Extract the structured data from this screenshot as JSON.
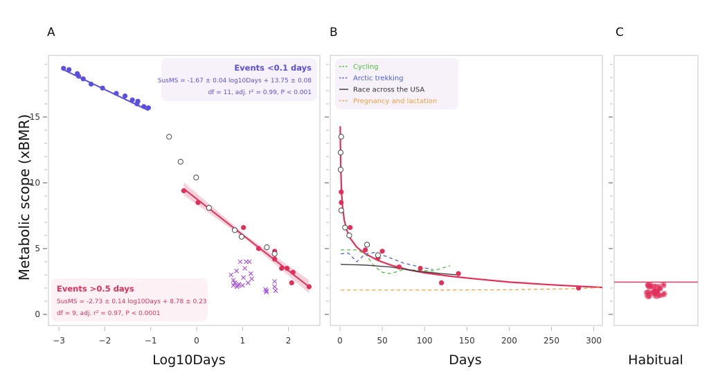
{
  "figure": {
    "ylabel": "Metabolic scope (xBMR)",
    "yticks": [
      0,
      5,
      10,
      15
    ],
    "ylim": [
      -0.8,
      19.5
    ]
  },
  "chart_data": [
    {
      "panel": "A",
      "type": "scatter",
      "xlabel": "Log10Days",
      "ylabel": "Metabolic scope (xBMR)",
      "xlim": [
        -3.2,
        2.7
      ],
      "ylim": [
        -0.8,
        19.5
      ],
      "xticks": [
        -3,
        -2,
        -1,
        0,
        1,
        2
      ],
      "yticks": [
        0,
        5,
        10,
        15
      ],
      "grid": false,
      "series": [
        {
          "name": "Events <0.1 days",
          "color": "#5b4fe0",
          "marker": "filled-circle",
          "points": [
            [
              -2.9,
              18.7
            ],
            [
              -2.78,
              18.6
            ],
            [
              -2.6,
              18.3
            ],
            [
              -2.57,
              18.1
            ],
            [
              -2.47,
              17.9
            ],
            [
              -2.3,
              17.5
            ],
            [
              -2.05,
              17.2
            ],
            [
              -1.75,
              16.8
            ],
            [
              -1.56,
              16.6
            ],
            [
              -1.4,
              16.3
            ],
            [
              -1.3,
              16.0
            ],
            [
              -1.28,
              16.2
            ],
            [
              -1.15,
              15.8
            ],
            [
              -1.05,
              15.7
            ]
          ],
          "fit": {
            "slope": -1.67,
            "intercept": 13.75,
            "x_range": [
              -2.9,
              -1.05
            ]
          }
        },
        {
          "name": "Events >0.5 days",
          "color": "#e0305a",
          "marker": "filled-circle",
          "points": [
            [
              -0.28,
              9.4
            ],
            [
              0.03,
              8.5
            ],
            [
              1.02,
              6.6
            ],
            [
              1.35,
              5.0
            ],
            [
              1.7,
              4.8
            ],
            [
              1.7,
              4.2
            ],
            [
              1.85,
              3.5
            ],
            [
              1.97,
              3.5
            ],
            [
              2.1,
              3.2
            ],
            [
              2.07,
              2.4
            ],
            [
              2.45,
              2.1
            ]
          ],
          "fit": {
            "slope": -2.73,
            "intercept": 8.78,
            "x_range": [
              -0.28,
              2.45
            ],
            "ci": true
          }
        },
        {
          "name": "Open circles",
          "color": "#444444",
          "marker": "open-circle",
          "points": [
            [
              -0.6,
              13.5
            ],
            [
              -0.35,
              11.6
            ],
            [
              -0.01,
              10.4
            ],
            [
              0.27,
              8.1
            ],
            [
              0.83,
              6.4
            ],
            [
              0.98,
              5.9
            ],
            [
              1.53,
              5.1
            ],
            [
              1.7,
              4.6
            ]
          ]
        },
        {
          "name": "Crosses",
          "color": "#a855e0",
          "marker": "cross",
          "points": [
            [
              0.75,
              3.0
            ],
            [
              0.8,
              2.6
            ],
            [
              0.8,
              2.2
            ],
            [
              0.83,
              2.4
            ],
            [
              0.87,
              3.3
            ],
            [
              0.88,
              2.1
            ],
            [
              0.9,
              2.2
            ],
            [
              0.92,
              2.3
            ],
            [
              0.95,
              4.0
            ],
            [
              1.0,
              2.2
            ],
            [
              1.02,
              2.8
            ],
            [
              1.05,
              3.5
            ],
            [
              1.08,
              4.0
            ],
            [
              1.12,
              2.4
            ],
            [
              1.15,
              4.0
            ],
            [
              1.18,
              3.1
            ],
            [
              1.2,
              2.7
            ],
            [
              1.5,
              1.9
            ],
            [
              1.52,
              1.7
            ],
            [
              1.52,
              1.8
            ],
            [
              1.7,
              2.5
            ],
            [
              1.7,
              2.1
            ],
            [
              1.72,
              1.8
            ]
          ]
        }
      ],
      "annotations": [
        {
          "title": "Events <0.1 days",
          "lines": [
            "SusMS = -1.67 ± 0.04 log10Days + 13.75 ± 0.08",
            "df = 11, adj. r² = 0.99, P < 0.001"
          ],
          "color": "#5b4fe0",
          "placement": "top-right"
        },
        {
          "title": "Events >0.5 days",
          "lines": [
            "SusMS = -2.73 ± 0.14 log10Days + 8.78 ± 0.23",
            "df = 9, adj. r² = 0.97, P < 0.0001"
          ],
          "color": "#e0305a",
          "placement": "bottom-left"
        }
      ]
    },
    {
      "panel": "B",
      "type": "line",
      "xlabel": "Days",
      "xlim": [
        -8,
        310
      ],
      "ylim": [
        -0.8,
        19.5
      ],
      "xticks": [
        0,
        50,
        100,
        150,
        200,
        250,
        300
      ],
      "yticks": [
        0,
        5,
        10,
        15
      ],
      "legend": {
        "placement": "top-left",
        "entries": [
          {
            "label": "Cycling",
            "color": "#4cbf3a",
            "style": "dashed"
          },
          {
            "label": "Arctic trekking",
            "color": "#4a63d9",
            "style": "dashed"
          },
          {
            "label": "Race across the USA",
            "color": "#333333",
            "style": "solid"
          },
          {
            "label": "Pregnancy and lactation",
            "color": "#f0a040",
            "style": "dashed"
          }
        ]
      },
      "series": [
        {
          "name": "Fit curve",
          "color": "#e0305a",
          "style": "solid",
          "points": [
            [
              0.3,
              14.3
            ],
            [
              0.6,
              12.5
            ],
            [
              1,
              11.2
            ],
            [
              1.5,
              10.0
            ],
            [
              2,
              9.2
            ],
            [
              3,
              8.2
            ],
            [
              5,
              7.2
            ],
            [
              8,
              6.4
            ],
            [
              12,
              5.8
            ],
            [
              20,
              5.1
            ],
            [
              30,
              4.6
            ],
            [
              45,
              4.1
            ],
            [
              60,
              3.75
            ],
            [
              80,
              3.4
            ],
            [
              100,
              3.15
            ],
            [
              130,
              2.9
            ],
            [
              160,
              2.7
            ],
            [
              200,
              2.45
            ],
            [
              250,
              2.25
            ],
            [
              310,
              2.05
            ]
          ]
        },
        {
          "name": "Cycling",
          "color": "#4cbf3a",
          "style": "dashed",
          "points": [
            [
              1,
              4.9
            ],
            [
              20,
              4.9
            ],
            [
              30,
              4.6
            ],
            [
              40,
              3.7
            ],
            [
              50,
              3.2
            ],
            [
              60,
              3.1
            ],
            [
              75,
              3.4
            ],
            [
              95,
              3.35
            ],
            [
              110,
              3.3
            ],
            [
              120,
              3.5
            ],
            [
              130,
              3.7
            ]
          ]
        },
        {
          "name": "Arctic trekking",
          "color": "#4a63d9",
          "style": "dashed",
          "points": [
            [
              1,
              4.6
            ],
            [
              10,
              4.65
            ],
            [
              20,
              4.0
            ],
            [
              30,
              4.6
            ],
            [
              40,
              4.7
            ],
            [
              55,
              4.4
            ],
            [
              75,
              3.9
            ],
            [
              95,
              3.6
            ],
            [
              110,
              3.4
            ]
          ]
        },
        {
          "name": "Race across the USA",
          "color": "#333333",
          "style": "solid",
          "points": [
            [
              1,
              3.8
            ],
            [
              30,
              3.75
            ],
            [
              60,
              3.6
            ],
            [
              90,
              3.3
            ],
            [
              120,
              3.1
            ],
            [
              140,
              3.0
            ]
          ]
        },
        {
          "name": "Pregnancy and lactation",
          "color": "#f0a040",
          "style": "dashed",
          "points": [
            [
              1,
              1.85
            ],
            [
              100,
              1.85
            ],
            [
              200,
              1.87
            ],
            [
              280,
              1.95
            ],
            [
              310,
              2.05
            ]
          ]
        },
        {
          "name": "Filled points",
          "color": "#e0305a",
          "marker": "filled-circle",
          "points": [
            [
              1.5,
              9.3
            ],
            [
              1.5,
              8.5
            ],
            [
              12,
              6.6
            ],
            [
              30,
              4.9
            ],
            [
              50,
              4.8
            ],
            [
              45,
              4.3
            ],
            [
              70,
              3.6
            ],
            [
              95,
              3.5
            ],
            [
              120,
              2.4
            ],
            [
              140,
              3.1
            ],
            [
              282,
              2.0
            ]
          ]
        },
        {
          "name": "Open points",
          "color": "#444444",
          "marker": "open-circle",
          "points": [
            [
              1.5,
              13.5
            ],
            [
              0.8,
              12.3
            ],
            [
              0.8,
              11.0
            ],
            [
              1.5,
              7.9
            ],
            [
              6,
              6.6
            ],
            [
              11,
              6.0
            ],
            [
              32,
              5.3
            ],
            [
              45,
              4.5
            ]
          ]
        }
      ]
    },
    {
      "panel": "C",
      "type": "scatter",
      "xlabel": "Habitual",
      "ylim": [
        -0.8,
        19.5
      ],
      "reference_line": {
        "y": 2.45,
        "color": "#e0305a"
      },
      "series": [
        {
          "name": "Habitual",
          "color": "#e0305a",
          "marker": "filled-circle-translucent",
          "y_range": [
            1.3,
            2.3
          ],
          "center_y": 1.75,
          "count": 60
        }
      ]
    }
  ],
  "panels": {
    "A": {
      "letter": "A",
      "xlabel": "Log10Days"
    },
    "B": {
      "letter": "B",
      "xlabel": "Days"
    },
    "C": {
      "letter": "C",
      "xlabel": "Habitual"
    }
  }
}
